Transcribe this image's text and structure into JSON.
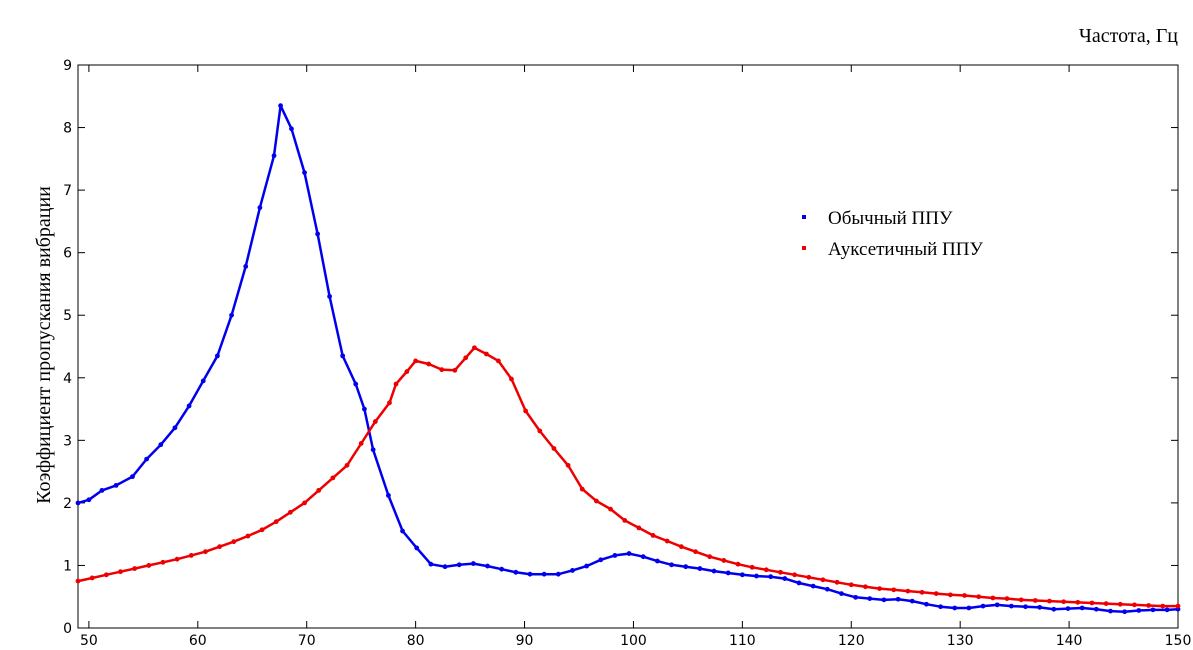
{
  "chart_data": {
    "type": "line",
    "xlabel": "Частота, Гц",
    "ylabel": "Коэффициент пропускания вибрации",
    "xlim": [
      49,
      150
    ],
    "ylim": [
      0,
      9
    ],
    "xticks": [
      50,
      60,
      70,
      80,
      90,
      100,
      110,
      120,
      130,
      140,
      150
    ],
    "yticks": [
      0,
      1,
      2,
      3,
      4,
      5,
      6,
      7,
      8,
      9
    ],
    "grid": false,
    "legend_position": "upper-right inside",
    "series": [
      {
        "name": "Обычный ППУ",
        "color": "#0000ee",
        "points": [
          [
            49,
            2.0
          ],
          [
            50,
            2.05
          ],
          [
            51.2,
            2.2
          ],
          [
            52.5,
            2.28
          ],
          [
            54,
            2.42
          ],
          [
            55.3,
            2.7
          ],
          [
            56.6,
            2.93
          ],
          [
            57.9,
            3.2
          ],
          [
            59.2,
            3.55
          ],
          [
            60.5,
            3.95
          ],
          [
            61.8,
            4.35
          ],
          [
            63.1,
            5.0
          ],
          [
            64.4,
            5.78
          ],
          [
            65.7,
            6.72
          ],
          [
            67,
            7.55
          ],
          [
            67.6,
            8.35
          ],
          [
            68.6,
            7.98
          ],
          [
            69.8,
            7.28
          ],
          [
            71,
            6.3
          ],
          [
            72.1,
            5.3
          ],
          [
            73.3,
            4.35
          ],
          [
            74.5,
            3.9
          ],
          [
            75.3,
            3.5
          ],
          [
            76.1,
            2.85
          ],
          [
            77.5,
            2.12
          ],
          [
            78.8,
            1.55
          ],
          [
            80.1,
            1.28
          ],
          [
            81.4,
            1.02
          ],
          [
            82.7,
            0.98
          ],
          [
            84,
            1.01
          ],
          [
            85.3,
            1.03
          ],
          [
            86.6,
            0.99
          ],
          [
            87.9,
            0.94
          ],
          [
            89.2,
            0.89
          ],
          [
            90.5,
            0.86
          ],
          [
            91.8,
            0.86
          ],
          [
            93.1,
            0.86
          ],
          [
            94.4,
            0.92
          ],
          [
            95.7,
            0.99
          ],
          [
            97,
            1.09
          ],
          [
            98.3,
            1.16
          ],
          [
            99.6,
            1.19
          ],
          [
            100.9,
            1.14
          ],
          [
            102.2,
            1.07
          ],
          [
            103.5,
            1.01
          ],
          [
            104.8,
            0.98
          ],
          [
            106.1,
            0.95
          ],
          [
            107.4,
            0.91
          ],
          [
            108.7,
            0.88
          ],
          [
            110,
            0.85
          ],
          [
            111.3,
            0.83
          ],
          [
            112.6,
            0.82
          ],
          [
            113.9,
            0.79
          ],
          [
            115.2,
            0.72
          ],
          [
            116.5,
            0.67
          ],
          [
            117.8,
            0.62
          ],
          [
            119.1,
            0.55
          ],
          [
            120.4,
            0.49
          ],
          [
            121.7,
            0.47
          ],
          [
            123,
            0.45
          ],
          [
            124.3,
            0.46
          ],
          [
            125.6,
            0.43
          ],
          [
            126.9,
            0.38
          ],
          [
            128.2,
            0.34
          ],
          [
            129.5,
            0.32
          ],
          [
            130.8,
            0.32
          ],
          [
            132.1,
            0.35
          ],
          [
            133.4,
            0.37
          ],
          [
            134.7,
            0.35
          ],
          [
            136,
            0.34
          ],
          [
            137.3,
            0.33
          ],
          [
            138.6,
            0.3
          ],
          [
            139.9,
            0.31
          ],
          [
            141.2,
            0.32
          ],
          [
            142.5,
            0.3
          ],
          [
            143.8,
            0.27
          ],
          [
            145.1,
            0.26
          ],
          [
            146.4,
            0.28
          ],
          [
            147.7,
            0.29
          ],
          [
            149,
            0.29
          ],
          [
            150,
            0.3
          ]
        ]
      },
      {
        "name": "Ауксетичный ППУ",
        "color": "#ee0000",
        "points": [
          [
            49,
            0.75
          ],
          [
            50.3,
            0.8
          ],
          [
            51.6,
            0.85
          ],
          [
            52.9,
            0.9
          ],
          [
            54.2,
            0.95
          ],
          [
            55.5,
            1.0
          ],
          [
            56.8,
            1.05
          ],
          [
            58.1,
            1.1
          ],
          [
            59.4,
            1.16
          ],
          [
            60.7,
            1.22
          ],
          [
            62,
            1.3
          ],
          [
            63.3,
            1.38
          ],
          [
            64.6,
            1.47
          ],
          [
            65.9,
            1.57
          ],
          [
            67.2,
            1.7
          ],
          [
            68.5,
            1.85
          ],
          [
            69.8,
            2.0
          ],
          [
            71.1,
            2.2
          ],
          [
            72.4,
            2.4
          ],
          [
            73.7,
            2.6
          ],
          [
            75,
            2.95
          ],
          [
            76.3,
            3.3
          ],
          [
            77.6,
            3.6
          ],
          [
            78.2,
            3.9
          ],
          [
            79.2,
            4.1
          ],
          [
            80,
            4.27
          ],
          [
            81.2,
            4.22
          ],
          [
            82.4,
            4.13
          ],
          [
            83.6,
            4.12
          ],
          [
            84.6,
            4.32
          ],
          [
            85.4,
            4.48
          ],
          [
            86.5,
            4.38
          ],
          [
            87.6,
            4.27
          ],
          [
            88.8,
            3.98
          ],
          [
            90.1,
            3.47
          ],
          [
            91.4,
            3.15
          ],
          [
            92.7,
            2.87
          ],
          [
            94,
            2.6
          ],
          [
            95.3,
            2.22
          ],
          [
            96.6,
            2.03
          ],
          [
            97.9,
            1.9
          ],
          [
            99.2,
            1.72
          ],
          [
            100.5,
            1.6
          ],
          [
            101.8,
            1.48
          ],
          [
            103.1,
            1.39
          ],
          [
            104.4,
            1.3
          ],
          [
            105.7,
            1.22
          ],
          [
            107,
            1.14
          ],
          [
            108.3,
            1.08
          ],
          [
            109.6,
            1.02
          ],
          [
            110.9,
            0.97
          ],
          [
            112.2,
            0.93
          ],
          [
            113.5,
            0.89
          ],
          [
            114.8,
            0.85
          ],
          [
            116.1,
            0.81
          ],
          [
            117.4,
            0.77
          ],
          [
            118.7,
            0.73
          ],
          [
            120,
            0.69
          ],
          [
            121.3,
            0.66
          ],
          [
            122.6,
            0.63
          ],
          [
            123.9,
            0.61
          ],
          [
            125.2,
            0.59
          ],
          [
            126.5,
            0.57
          ],
          [
            127.8,
            0.55
          ],
          [
            129.1,
            0.53
          ],
          [
            130.4,
            0.52
          ],
          [
            131.7,
            0.5
          ],
          [
            133,
            0.48
          ],
          [
            134.3,
            0.47
          ],
          [
            135.6,
            0.45
          ],
          [
            136.9,
            0.44
          ],
          [
            138.2,
            0.43
          ],
          [
            139.5,
            0.42
          ],
          [
            140.8,
            0.41
          ],
          [
            142.1,
            0.4
          ],
          [
            143.4,
            0.39
          ],
          [
            144.7,
            0.38
          ],
          [
            146,
            0.37
          ],
          [
            147.3,
            0.36
          ],
          [
            148.6,
            0.35
          ],
          [
            150,
            0.35
          ]
        ]
      }
    ]
  }
}
